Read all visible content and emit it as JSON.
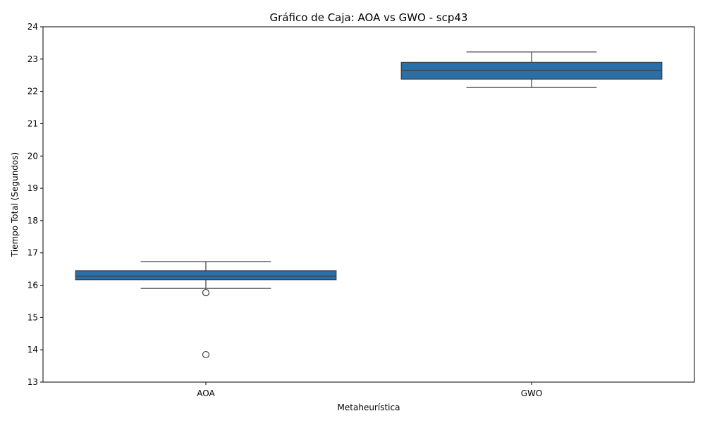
{
  "chart_data": {
    "type": "box",
    "title": "Gráfico de Caja: AOA vs GWO - scp43",
    "xlabel": "Metaheurística",
    "ylabel": "Tiempo Total (Segundos)",
    "ylim": [
      13,
      24
    ],
    "yticks": [
      13,
      14,
      15,
      16,
      17,
      18,
      19,
      20,
      21,
      22,
      23,
      24
    ],
    "grid": false,
    "legend": "none",
    "box_color": "#2b6fa6",
    "line_color": "#3d3d3d",
    "categories": [
      "AOA",
      "GWO"
    ],
    "boxes": [
      {
        "category": "AOA",
        "whisker_low": 15.9,
        "q1": 16.17,
        "median": 16.28,
        "q3": 16.45,
        "whisker_high": 16.73,
        "outliers": [
          15.77,
          13.85
        ]
      },
      {
        "category": "GWO",
        "whisker_low": 22.12,
        "q1": 22.38,
        "median": 22.65,
        "q3": 22.9,
        "whisker_high": 23.22,
        "outliers": []
      }
    ]
  }
}
